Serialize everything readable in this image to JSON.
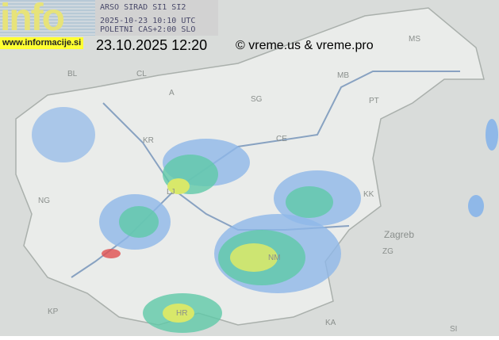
{
  "logo_text": "info",
  "site": "www.informacije.si",
  "header": {
    "line1": "ARSO SIRAD SI1 SI2",
    "line2": "2025-10-23 10:10 UTC",
    "line3": "POLETNI CAS+2:00 SLO"
  },
  "local_time": "23.10.2025 12:20",
  "copyright": "© vreme.us & vreme.pro",
  "places": [
    "BL",
    "CL",
    "A",
    "MS",
    "MB",
    "PT",
    "CE",
    "SG",
    "KR",
    "NG",
    "KK",
    "KP",
    "HR",
    "NM",
    "KA",
    "ZG",
    "SI",
    "Zagreb",
    "LJ"
  ],
  "colors": {
    "background": "#d9dcda",
    "country": "#eaecea",
    "radar_low": "#8fb8e8",
    "radar_mid": "#5fc9a8",
    "radar_high": "#d8e86a",
    "road": "#6f8fb8"
  }
}
